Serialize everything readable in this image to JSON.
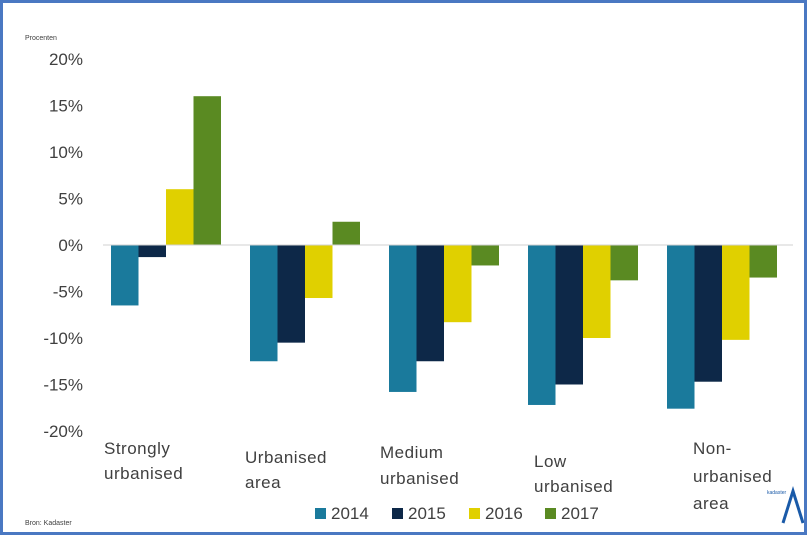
{
  "chart_data": {
    "type": "bar",
    "ylabel": "Procenten",
    "categories": [
      [
        "Strongly",
        "urbanised"
      ],
      [
        "Urbanised",
        "area"
      ],
      [
        "Medium",
        "urbanised"
      ],
      [
        "Low",
        "urbanised"
      ],
      [
        "Non-",
        "urbanised",
        "area"
      ]
    ],
    "series": [
      {
        "name": "2014",
        "color": "#1a7a9c",
        "values": [
          -6.5,
          -12.5,
          -15.8,
          -17.2,
          -17.6
        ]
      },
      {
        "name": "2015",
        "color": "#0d2848",
        "values": [
          -1.3,
          -10.5,
          -12.5,
          -15.0,
          -14.7
        ]
      },
      {
        "name": "2016",
        "color": "#e0d000",
        "values": [
          6.0,
          -5.7,
          -8.3,
          -10.0,
          -10.2
        ]
      },
      {
        "name": "2017",
        "color": "#5a8a22",
        "values": [
          16.0,
          2.5,
          -2.2,
          -3.8,
          -3.5
        ]
      }
    ],
    "ylim": [
      -20,
      20
    ],
    "yticks": [
      20,
      15,
      10,
      5,
      0,
      -5,
      -10,
      -15,
      -20
    ],
    "ytick_labels": [
      "20%",
      "15%",
      "10%",
      "5%",
      "0%",
      "-5%",
      "-10%",
      "-15%",
      "-20%"
    ],
    "grid": false,
    "legend": "bottom",
    "source": "Bron: Kadaster",
    "logo_text": "kadaster"
  }
}
